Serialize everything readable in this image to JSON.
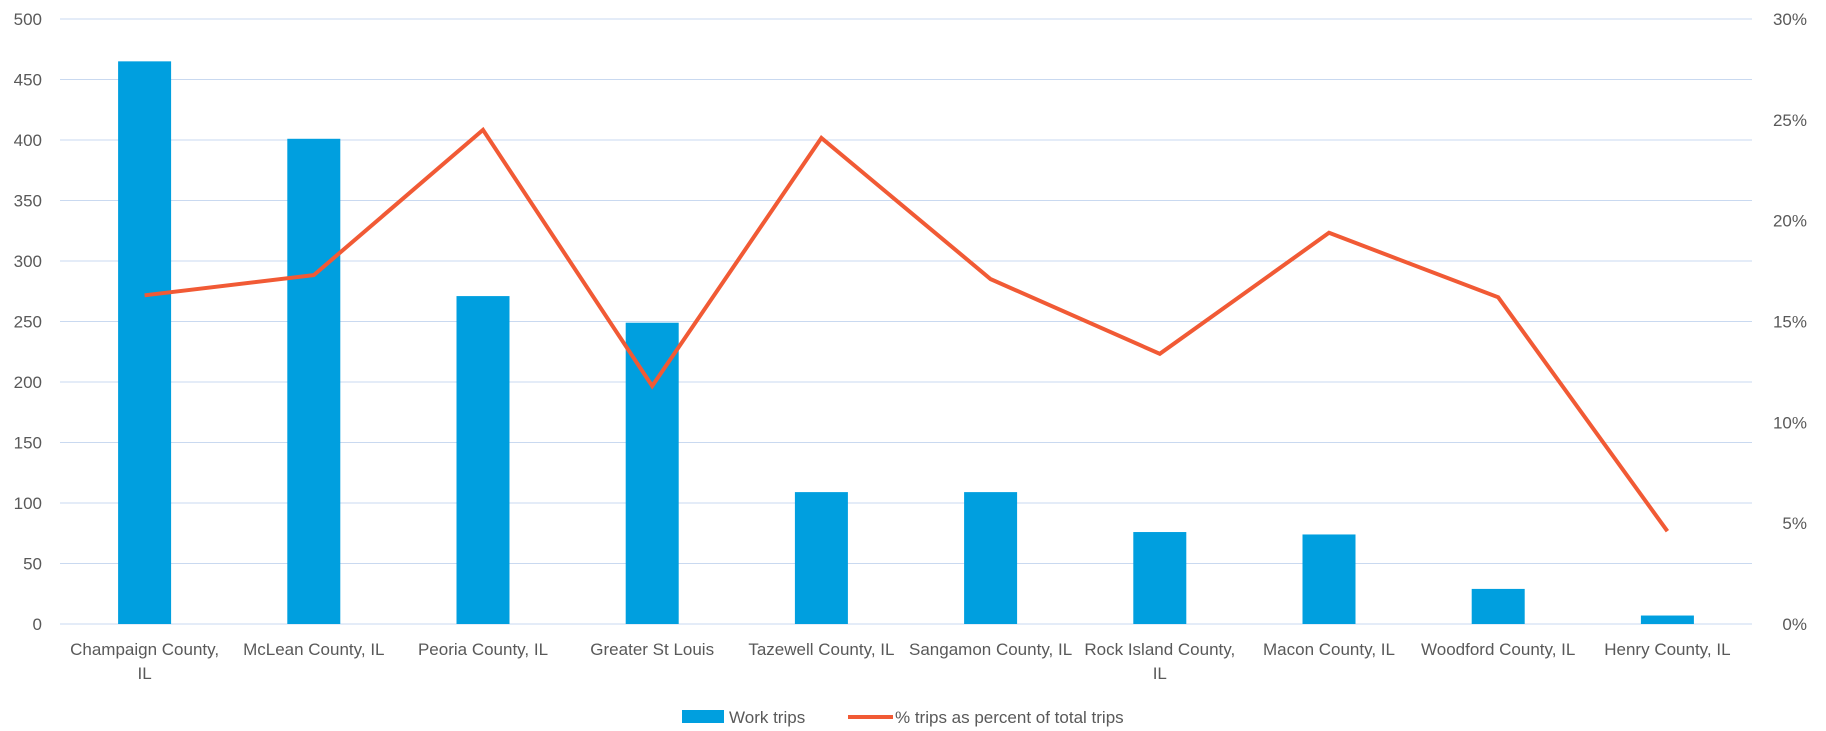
{
  "chart_data": {
    "type": "bar",
    "categories": [
      "Champaign County, IL",
      "McLean County, IL",
      "Peoria County, IL",
      "Greater St Louis",
      "Tazewell County, IL",
      "Sangamon County, IL",
      "Rock Island County, IL",
      "Macon County, IL",
      "Woodford County, IL",
      "Henry County, IL"
    ],
    "category_lines": [
      [
        "Champaign County,",
        "IL"
      ],
      [
        "McLean County, IL"
      ],
      [
        "Peoria County, IL"
      ],
      [
        "Greater St Louis"
      ],
      [
        "Tazewell County, IL"
      ],
      [
        "Sangamon County, IL"
      ],
      [
        "Rock Island County,",
        "IL"
      ],
      [
        "Macon County, IL"
      ],
      [
        "Woodford County, IL"
      ],
      [
        "Henry County, IL"
      ]
    ],
    "series": [
      {
        "name": "Work trips",
        "type": "bar",
        "axis": "left",
        "color": "#009FDF",
        "values": [
          465,
          401,
          271,
          249,
          109,
          109,
          76,
          74,
          29,
          7
        ]
      },
      {
        "name": "% trips as percent of total trips",
        "type": "line",
        "axis": "right",
        "color": "#F15A35",
        "values": [
          16.3,
          17.3,
          24.5,
          11.8,
          24.1,
          17.1,
          13.4,
          19.4,
          16.2,
          4.6
        ]
      }
    ],
    "y_left": {
      "min": 0,
      "max": 500,
      "ticks": [
        "0",
        "50",
        "100",
        "150",
        "200",
        "250",
        "300",
        "350",
        "400",
        "450",
        "500"
      ]
    },
    "y_right": {
      "min": 0,
      "max": 30,
      "ticks": [
        "0%",
        "5%",
        "10%",
        "15%",
        "20%",
        "25%",
        "30%"
      ]
    },
    "grid": true,
    "gridline_color": "#C9D9F0",
    "legend_position": "bottom"
  }
}
